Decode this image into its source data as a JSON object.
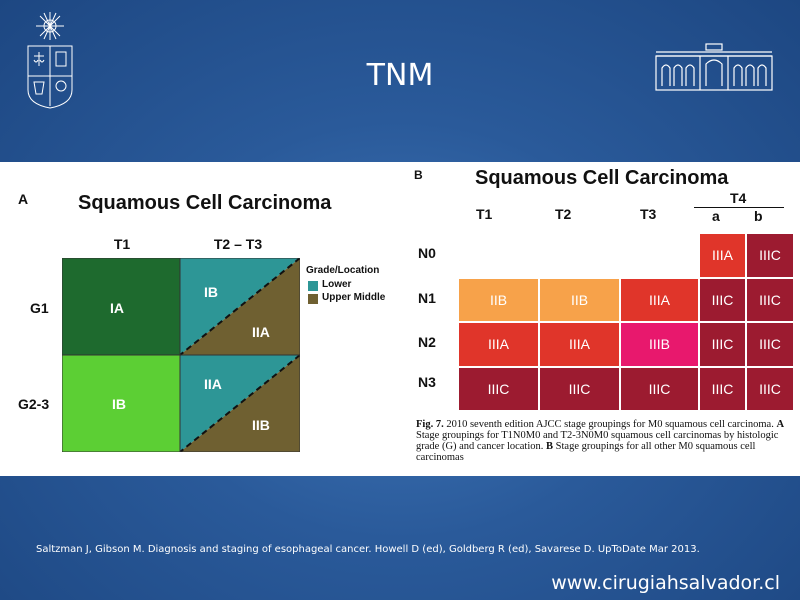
{
  "slide": {
    "title": "TNM",
    "citation": "Saltzman J, Gibson M. Diagnosis and staging of esophageal cancer.  Howell D (ed), Goldberg R (ed),  Savarese D. UpToDate Mar 2013.",
    "website": "www.cirugiahsalvador.cl"
  },
  "panel_a": {
    "label": "A",
    "title": "Squamous Cell Carcinoma",
    "col_headers": [
      "T1",
      "T2 – T3"
    ],
    "row_headers": [
      "G1",
      "G2-3"
    ],
    "cells": {
      "g1_t1": "IA",
      "g1_t23_upper": "IB",
      "g1_t23_lower": "IIA",
      "g23_t1": "IB",
      "g23_t23_upper": "IIA",
      "g23_t23_lower": "IIB"
    },
    "legend": {
      "title": "Grade/Location",
      "items": [
        "Lower",
        "Upper Middle"
      ]
    },
    "colors": {
      "dark_green": "#1e6a2e",
      "light_green": "#5ccf34",
      "teal": "#2d9696",
      "olive": "#6f6031"
    }
  },
  "panel_b": {
    "label": "B",
    "title": "Squamous Cell Carcinoma",
    "col_headers": [
      "T1",
      "T2",
      "T3"
    ],
    "t4_header": "T4",
    "t4_sub": [
      "a",
      "b"
    ],
    "rows": [
      {
        "label": "N0",
        "cells": [
          "",
          "",
          "",
          "IIIA",
          "IIIC"
        ]
      },
      {
        "label": "N1",
        "cells": [
          "IIB",
          "IIB",
          "IIIA",
          "IIIC",
          "IIIC"
        ]
      },
      {
        "label": "N2",
        "cells": [
          "IIIA",
          "IIIA",
          "IIIB",
          "IIIC",
          "IIIC"
        ]
      },
      {
        "label": "N3",
        "cells": [
          "IIIC",
          "IIIC",
          "IIIC",
          "IIIC",
          "IIIC"
        ]
      }
    ],
    "stage_colors": {
      "IIB": "#f7a24a",
      "IIIA": "#e0352a",
      "IIIB": "#e8186d",
      "IIIC": "#9c1b30",
      "none": "#ffffff"
    },
    "caption": {
      "fig": "Fig. 7.",
      "text1": " 2010 seventh edition AJCC stage groupings for M0 squamous cell carcinoma. ",
      "a": "A",
      "text2": " Stage groupings for T1N0M0 and T2-3N0M0 squamous cell carcinomas by histologic grade (G) and cancer location. ",
      "b": "B",
      "text3": " Stage groupings for all other M0 squamous cell carcinomas"
    }
  }
}
